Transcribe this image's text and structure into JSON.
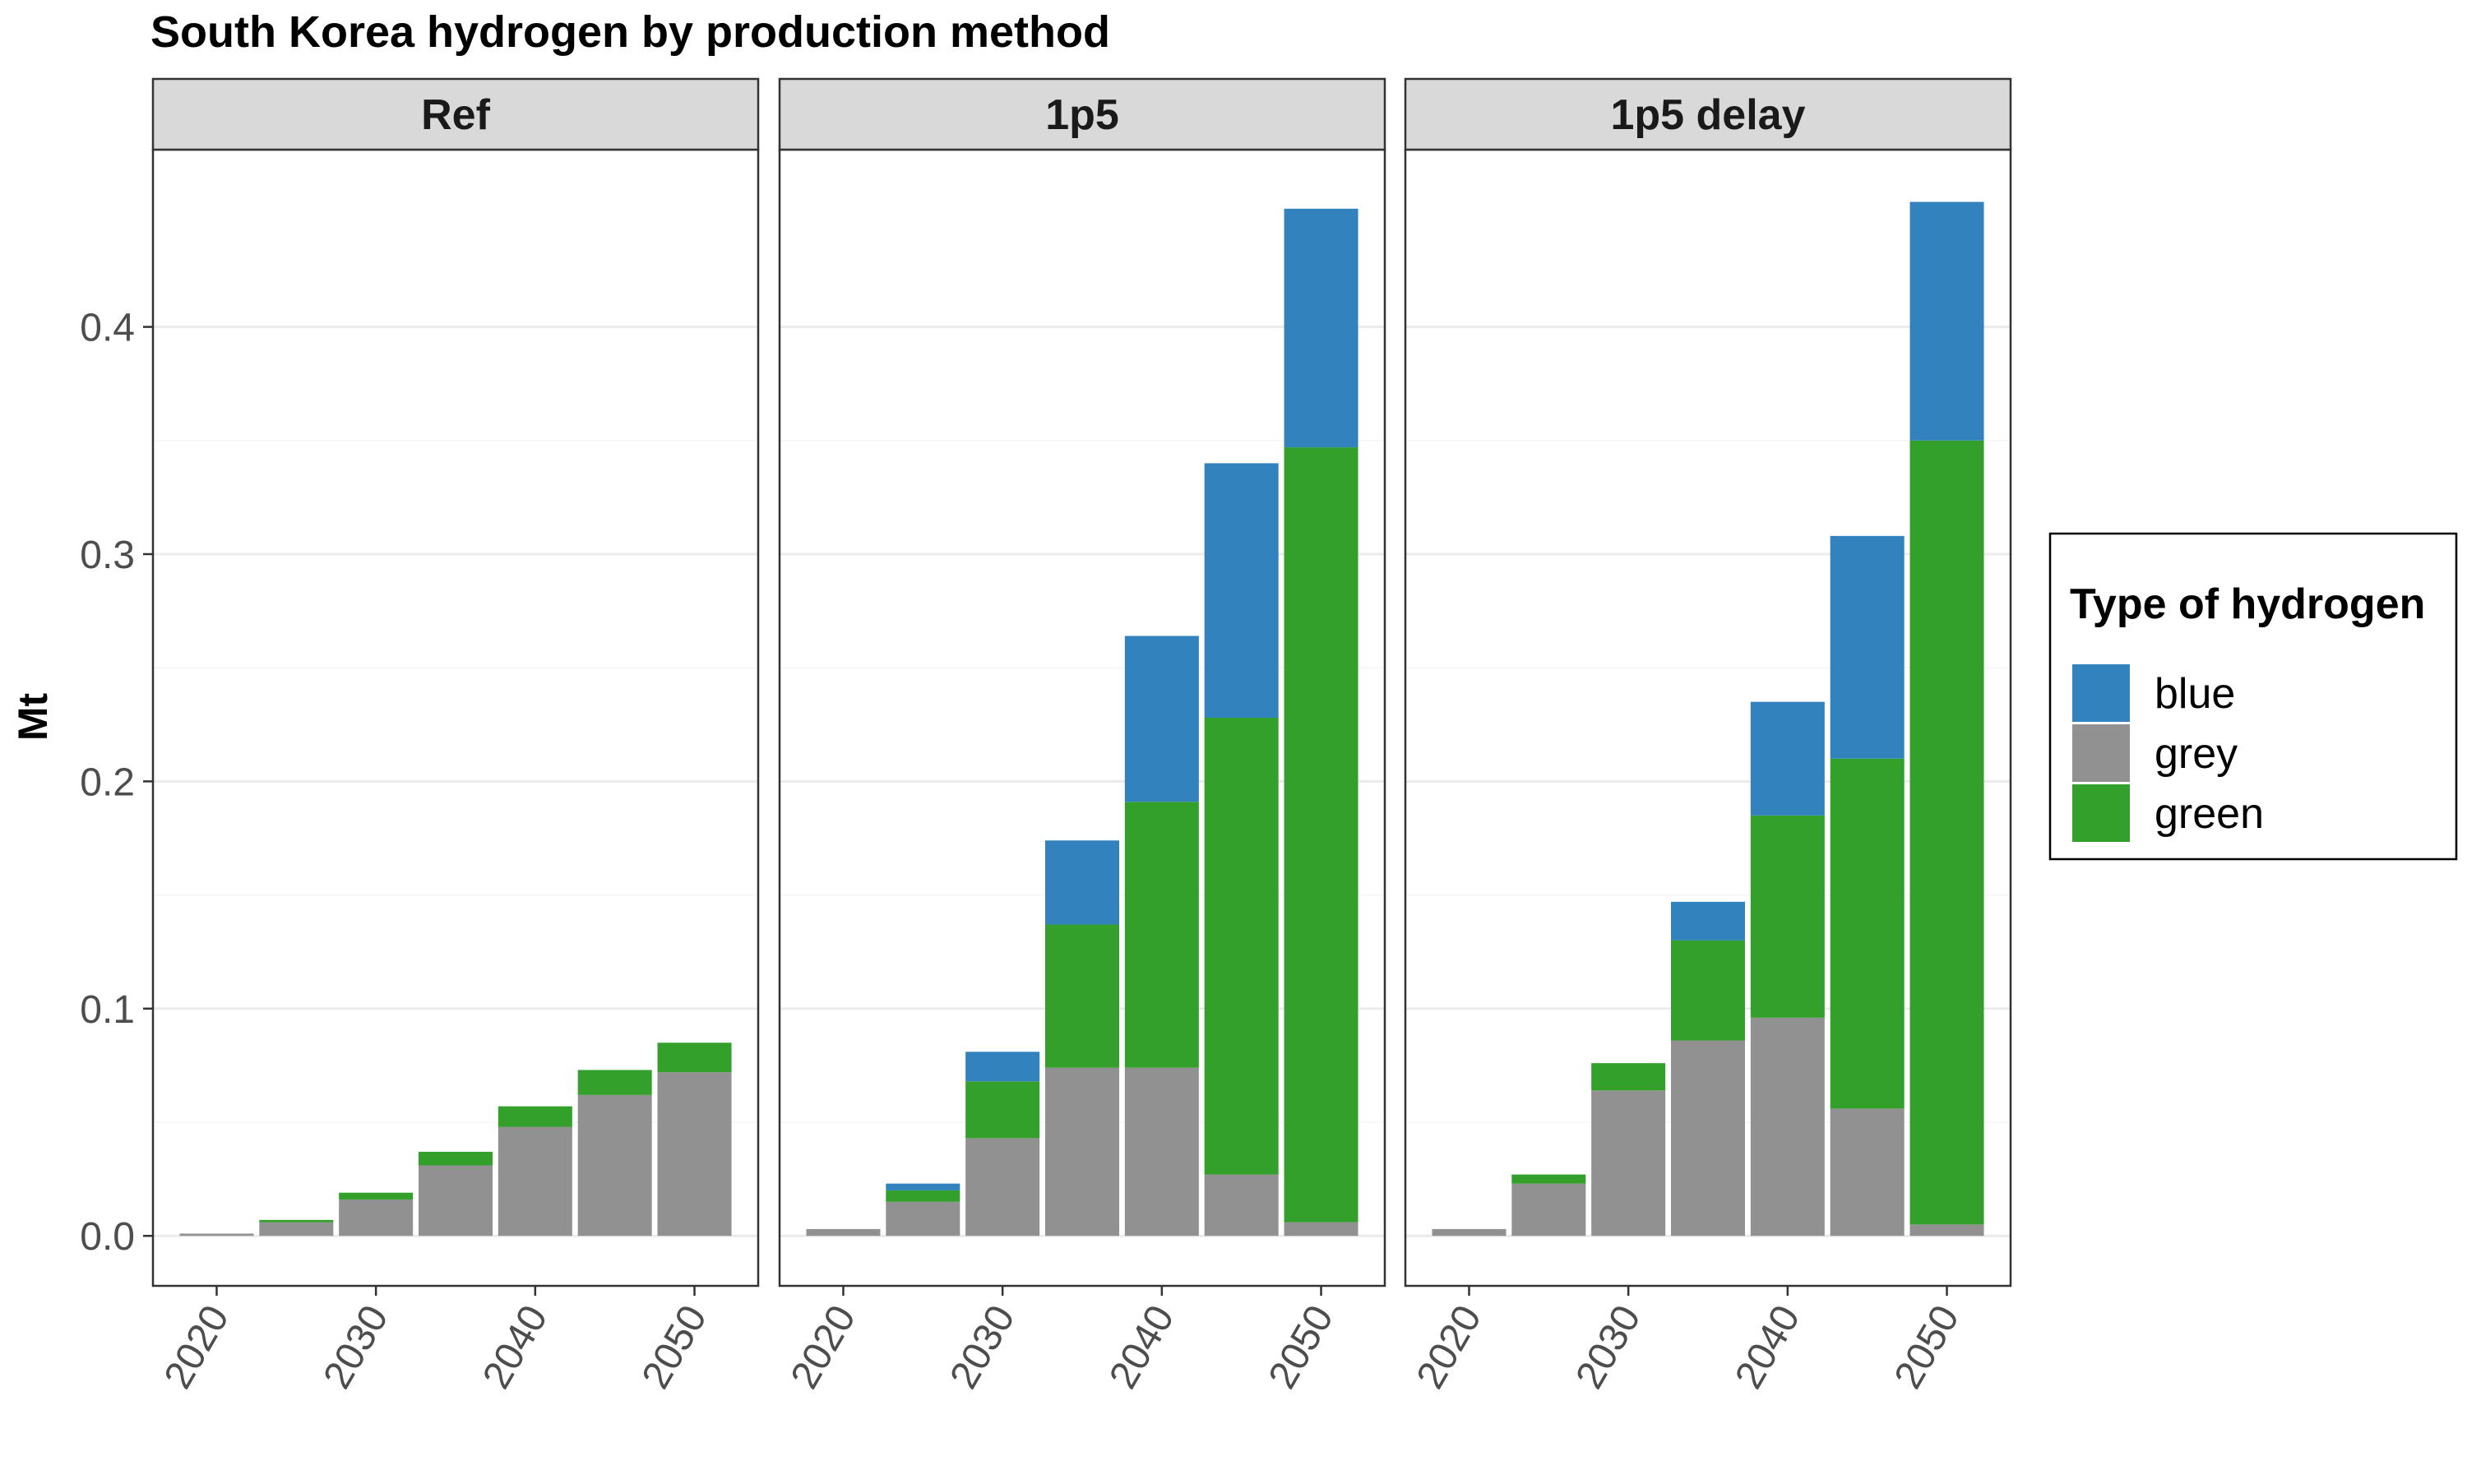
{
  "chart_data": {
    "type": "bar",
    "stacked": true,
    "title": "South Korea hydrogen by production method",
    "ylabel": "Mt",
    "xlabel": "",
    "ylim": [
      -0.022,
      0.478
    ],
    "yticks": [
      "0.0",
      "0.1",
      "0.2",
      "0.3",
      "0.4"
    ],
    "ytick_values": [
      0,
      0.1,
      0.2,
      0.3,
      0.4
    ],
    "x": [
      2020,
      2025,
      2030,
      2035,
      2040,
      2045,
      2050
    ],
    "xticks": [
      "2020",
      "2030",
      "2040",
      "2050"
    ],
    "xtick_values": [
      2020,
      2030,
      2040,
      2050
    ],
    "grid": true,
    "legend": {
      "title": "Type of hydrogen",
      "position": "right",
      "entries": [
        {
          "name": "blue",
          "color": "#3182bd"
        },
        {
          "name": "grey",
          "color": "#919191"
        },
        {
          "name": "green",
          "color": "#33a02c"
        }
      ]
    },
    "panels": [
      {
        "label": "Ref",
        "series": [
          {
            "name": "grey",
            "values": [
              0.001,
              0.006,
              0.016,
              0.031,
              0.048,
              0.062,
              0.072
            ]
          },
          {
            "name": "green",
            "values": [
              0.0,
              0.001,
              0.003,
              0.006,
              0.009,
              0.011,
              0.013
            ]
          },
          {
            "name": "blue",
            "values": [
              0.0,
              0.0,
              0.0,
              0.0,
              0.0,
              0.0,
              0.0
            ]
          }
        ]
      },
      {
        "label": "1p5",
        "series": [
          {
            "name": "grey",
            "values": [
              0.003,
              0.015,
              0.043,
              0.074,
              0.074,
              0.027,
              0.006
            ]
          },
          {
            "name": "green",
            "values": [
              0.0,
              0.005,
              0.025,
              0.063,
              0.117,
              0.201,
              0.341
            ]
          },
          {
            "name": "blue",
            "values": [
              0.0,
              0.003,
              0.013,
              0.037,
              0.073,
              0.112,
              0.105
            ]
          }
        ]
      },
      {
        "label": "1p5 delay",
        "series": [
          {
            "name": "grey",
            "values": [
              0.003,
              0.023,
              0.064,
              0.086,
              0.096,
              0.056,
              0.005
            ]
          },
          {
            "name": "green",
            "values": [
              0.0,
              0.004,
              0.012,
              0.044,
              0.089,
              0.154,
              0.345
            ]
          },
          {
            "name": "blue",
            "values": [
              0.0,
              0.0,
              0.0,
              0.017,
              0.05,
              0.098,
              0.105
            ]
          }
        ]
      }
    ]
  }
}
